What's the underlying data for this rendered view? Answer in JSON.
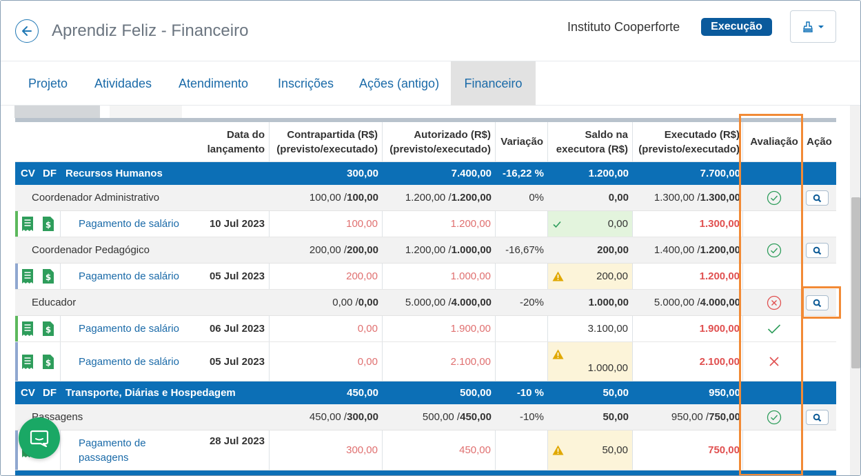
{
  "header": {
    "title": "Aprendiz Feliz - Financeiro",
    "organization": "Instituto Cooperforte",
    "status": "Execução"
  },
  "tabs": [
    "Projeto",
    "Atividades",
    "Atendimento",
    "Inscrições",
    "Ações (antigo)",
    "Financeiro"
  ],
  "active_tab": "Financeiro",
  "table": {
    "headers": {
      "date": [
        "Data do",
        "lançamento"
      ],
      "counterpart": [
        "Contrapartida (R$)",
        "(previsto/executado)"
      ],
      "authorized": [
        "Autorizado (R$)",
        "(previsto/executado)"
      ],
      "variation": "Variação",
      "balance": [
        "Saldo na",
        "executora (R$)"
      ],
      "executed": [
        "Executado (R$)",
        "(previsto/executado)"
      ],
      "evaluation": "Avaliação",
      "action": "Ação"
    },
    "groups": [
      {
        "cv": "CV",
        "df": "DF",
        "name": "Recursos Humanos",
        "counterpart": "300,00",
        "authorized": "7.400,00",
        "variation": "-16,22 %",
        "balance": "1.200,00",
        "executed": "7.700,00"
      },
      {
        "cv": "CV",
        "df": "DF",
        "name": "Transporte, Diárias e Hospedagem",
        "counterpart": "450,00",
        "authorized": "500,00",
        "variation": "-10 %",
        "balance": "50,00",
        "executed": "950,00"
      }
    ],
    "items": [
      {
        "name": "Coordenador Administrativo",
        "counterpart_prev": "100,00 / ",
        "counterpart_exec": "100,00",
        "authorized_prev": "1.200,00 / ",
        "authorized_exec": "1.200,00",
        "variation": "0%",
        "balance": "0,00",
        "executed_prev": "1.300,00 / ",
        "executed_exec": "1.300,00",
        "evaluation": "approved"
      },
      {
        "name": "Coordenador Pedagógico",
        "counterpart_prev": "200,00 / ",
        "counterpart_exec": "200,00",
        "authorized_prev": "1.200,00 / ",
        "authorized_exec": "1.000,00",
        "variation": "-16,67%",
        "balance": "200,00",
        "executed_prev": "1.400,00 / ",
        "executed_exec": "1.200,00",
        "evaluation": "approved"
      },
      {
        "name": "Educador",
        "counterpart_prev": "0,00 / ",
        "counterpart_exec": "0,00",
        "authorized_prev": "5.000,00 / ",
        "authorized_exec": "4.000,00",
        "variation": "-20%",
        "balance": "1.000,00",
        "executed_prev": "5.000,00 / ",
        "executed_exec": "4.000,00",
        "evaluation": "rejected"
      },
      {
        "name": "Passagens",
        "counterpart_prev": "450,00 / ",
        "counterpart_exec": "300,00",
        "authorized_prev": "500,00 / ",
        "authorized_exec": "450,00",
        "variation": "-10%",
        "balance": "50,00",
        "executed_prev": "950,00 / ",
        "executed_exec": "750,00",
        "evaluation": "approved"
      }
    ],
    "entries": [
      {
        "description": "Pagamento de salário",
        "date": "10 Jul 2023",
        "counterpart": "100,00",
        "authorized": "1.200,00",
        "balance": "0,00",
        "balance_state": "ok",
        "executed": "1.300,00",
        "evaluation": ""
      },
      {
        "description": "Pagamento de salário",
        "date": "05 Jul 2023",
        "counterpart": "200,00",
        "authorized": "1.000,00",
        "balance": "200,00",
        "balance_state": "warning",
        "executed": "1.200,00",
        "evaluation": ""
      },
      {
        "description": "Pagamento de salário",
        "date": "06 Jul 2023",
        "counterpart": "0,00",
        "authorized": "1.900,00",
        "balance": "3.100,00",
        "balance_state": "none",
        "executed": "1.900,00",
        "evaluation": "check"
      },
      {
        "description": "Pagamento de salário",
        "date": "05 Jul 2023",
        "counterpart": "0,00",
        "authorized": "2.100,00",
        "balance": "1.000,00",
        "balance_state": "warning",
        "executed": "2.100,00",
        "evaluation": "cross"
      },
      {
        "description": "Pagamento de passagens",
        "description_l1": "Pagamento de",
        "description_l2": "passagens",
        "date": "28 Jul 2023",
        "counterpart": "300,00",
        "authorized": "450,00",
        "balance": "50,00",
        "balance_state": "warning",
        "executed": "750,00",
        "evaluation": ""
      }
    ]
  },
  "colors": {
    "primary": "#0c6fb6",
    "badge": "#0a5a9c",
    "ok_green": "#2e9d5b",
    "error_red": "#e05050",
    "warning": "#e0a800",
    "highlight": "#f28a35",
    "chat": "#1aa865"
  },
  "icons": [
    "back-arrow-icon",
    "stamp-icon",
    "chevron-down-icon",
    "receipt-icon",
    "dollar-document-icon",
    "check-circle-icon",
    "x-circle-icon",
    "search-icon",
    "check-icon",
    "x-icon",
    "warning-icon",
    "chat-icon"
  ]
}
